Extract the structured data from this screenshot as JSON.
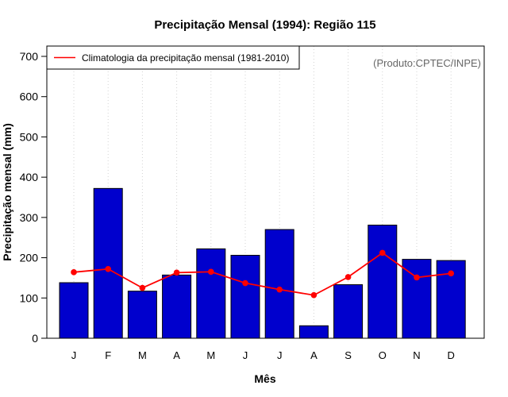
{
  "chart_data": {
    "type": "bar",
    "title": "Precipitação Mensal (1994): Região 115",
    "xlabel": "Mês",
    "ylabel": "Precipitação mensal (mm)",
    "ylim": [
      0,
      700
    ],
    "yticks": [
      0,
      100,
      200,
      300,
      400,
      500,
      600,
      700
    ],
    "categories": [
      "J",
      "F",
      "M",
      "A",
      "M",
      "J",
      "J",
      "A",
      "S",
      "O",
      "N",
      "D"
    ],
    "series": [
      {
        "name": "Precipitação mensal (1994)",
        "type": "bar",
        "color": "#0000cd",
        "values": [
          138,
          372,
          117,
          157,
          222,
          206,
          270,
          31,
          133,
          281,
          196,
          193
        ]
      },
      {
        "name": "Climatologia da precipitação mensal (1981-2010)",
        "type": "line",
        "color": "#ff0000",
        "values": [
          164,
          172,
          125,
          163,
          165,
          137,
          121,
          107,
          152,
          212,
          151,
          161
        ]
      }
    ],
    "legend": {
      "position": "top-left",
      "label": "Climatologia da precipitação mensal (1981-2010)"
    },
    "credit": "(Produto:CPTEC/INPE)",
    "grid": "vertical-dotted"
  }
}
